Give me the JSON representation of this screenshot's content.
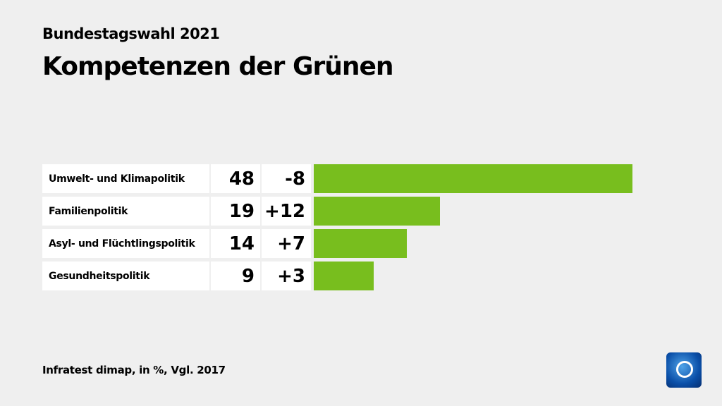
{
  "header": {
    "supertitle": "Bundestagswahl 2021",
    "title": "Kompetenzen der Grünen"
  },
  "footer": {
    "source": "Infratest dimap, in %, Vgl. 2017"
  },
  "logo": {
    "name": "tagesschau-logo-icon"
  },
  "chart_data": {
    "type": "bar",
    "orientation": "horizontal",
    "categories": [
      "Umwelt- und Klimapolitik",
      "Familienpolitik",
      "Asyl- und Flüchtlingspolitik",
      "Gesundheitspolitik"
    ],
    "values": [
      48,
      19,
      14,
      9
    ],
    "changes": [
      "-8",
      "+12",
      "+7",
      "+3"
    ],
    "bar_color": "#78be1e",
    "xlim": [
      0,
      48
    ],
    "grid": false
  }
}
